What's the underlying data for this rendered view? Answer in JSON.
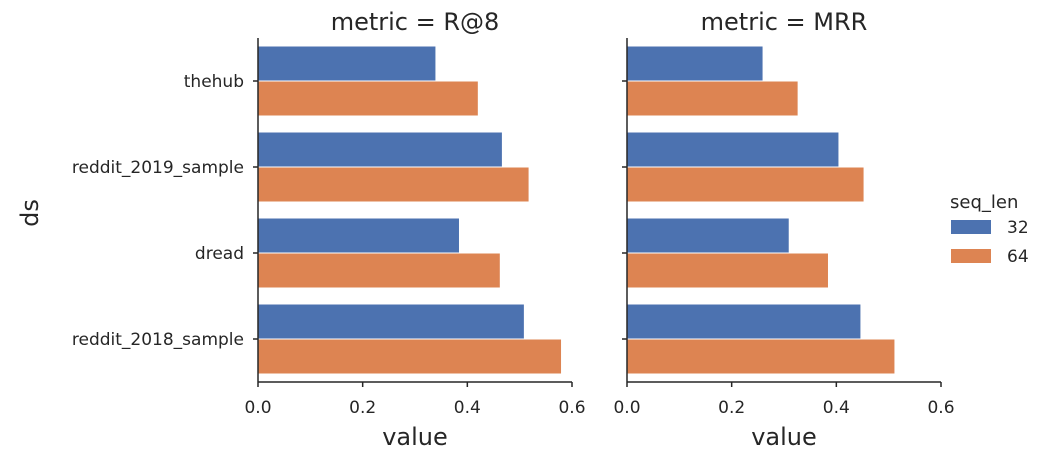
{
  "chart_data": {
    "type": "bar",
    "orientation": "horizontal",
    "categories": [
      "thehub",
      "reddit_2019_sample",
      "dread",
      "reddit_2018_sample"
    ],
    "xlabel": "value",
    "ylabel": "ds",
    "xlim": [
      0,
      0.6
    ],
    "xticks": [
      "0.0",
      "0.2",
      "0.4",
      "0.6"
    ],
    "grid": false,
    "legend": {
      "title": "seq_len",
      "placement": "right",
      "entries": [
        {
          "label": "32",
          "color": "#4c72b0"
        },
        {
          "label": "64",
          "color": "#dd8452"
        }
      ]
    },
    "panels": [
      {
        "title": "metric = R@8",
        "series": [
          {
            "name": "32",
            "values": [
              0.34,
              0.467,
              0.385,
              0.509
            ]
          },
          {
            "name": "64",
            "values": [
              0.421,
              0.518,
              0.463,
              0.58
            ]
          }
        ]
      },
      {
        "title": "metric = MRR",
        "series": [
          {
            "name": "32",
            "values": [
              0.26,
              0.405,
              0.31,
              0.447
            ]
          },
          {
            "name": "64",
            "values": [
              0.327,
              0.453,
              0.385,
              0.512
            ]
          }
        ]
      }
    ]
  }
}
